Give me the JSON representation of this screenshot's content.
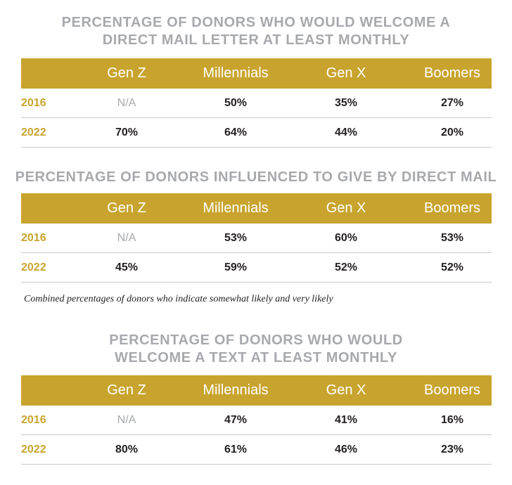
{
  "section1": {
    "title_line1": "PERCENTAGE OF DONORS WHO WOULD WELCOME A",
    "title_line2": "DIRECT MAIL LETTER AT LEAST MONTHLY",
    "headers": [
      "Gen Z",
      "Millennials",
      "Gen X",
      "Boomers"
    ],
    "rows": [
      {
        "year": "2016",
        "cells": [
          "N/A",
          "50%",
          "35%",
          "27%"
        ]
      },
      {
        "year": "2022",
        "cells": [
          "70%",
          "64%",
          "44%",
          "20%"
        ]
      }
    ]
  },
  "section2": {
    "title_line1": "PERCENTAGE OF DONORS INFLUENCED TO GIVE BY DIRECT MAIL",
    "headers": [
      "Gen Z",
      "Millennials",
      "Gen X",
      "Boomers"
    ],
    "rows": [
      {
        "year": "2016",
        "cells": [
          "N/A",
          "53%",
          "60%",
          "53%"
        ]
      },
      {
        "year": "2022",
        "cells": [
          "45%",
          "59%",
          "52%",
          "52%"
        ]
      }
    ],
    "note": "Combined percentages of donors who indicate somewhat likely and very likely"
  },
  "section3": {
    "title_line1": "PERCENTAGE OF DONORS WHO WOULD",
    "title_line2": "WELCOME A TEXT AT LEAST MONTHLY",
    "headers": [
      "Gen Z",
      "Millennials",
      "Gen X",
      "Boomers"
    ],
    "rows": [
      {
        "year": "2016",
        "cells": [
          "N/A",
          "47%",
          "41%",
          "16%"
        ]
      },
      {
        "year": "2022",
        "cells": [
          "80%",
          "61%",
          "46%",
          "23%"
        ]
      }
    ]
  },
  "colors": {
    "gold": "#c8a42e",
    "gray_title": "#a7a9ac",
    "text": "#231f20"
  }
}
